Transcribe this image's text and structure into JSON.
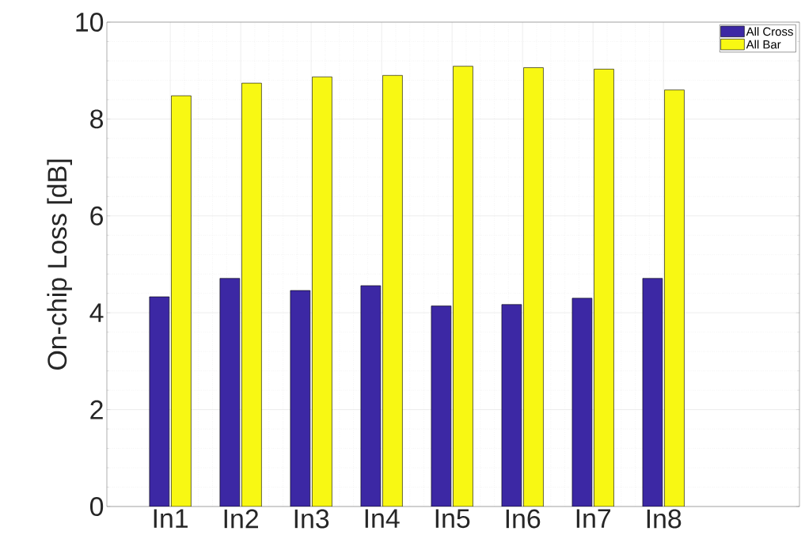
{
  "chart_data": {
    "type": "bar",
    "ylabel": "On-chip Loss [dB]",
    "categories": [
      "In1",
      "In2",
      "In3",
      "In4",
      "In5",
      "In6",
      "In7",
      "In8"
    ],
    "series": [
      {
        "name": "All Cross",
        "color": "#3c28a4",
        "values": [
          4.33,
          4.71,
          4.46,
          4.56,
          4.14,
          4.17,
          4.3,
          4.71
        ]
      },
      {
        "name": "All Bar",
        "color": "#f8f813",
        "values": [
          8.48,
          8.74,
          8.87,
          8.9,
          9.09,
          9.06,
          9.03,
          8.6
        ]
      }
    ],
    "ylim": [
      0,
      10
    ],
    "yticks": [
      0,
      2,
      4,
      6,
      8,
      10
    ],
    "grid": true,
    "legend": "top right"
  }
}
